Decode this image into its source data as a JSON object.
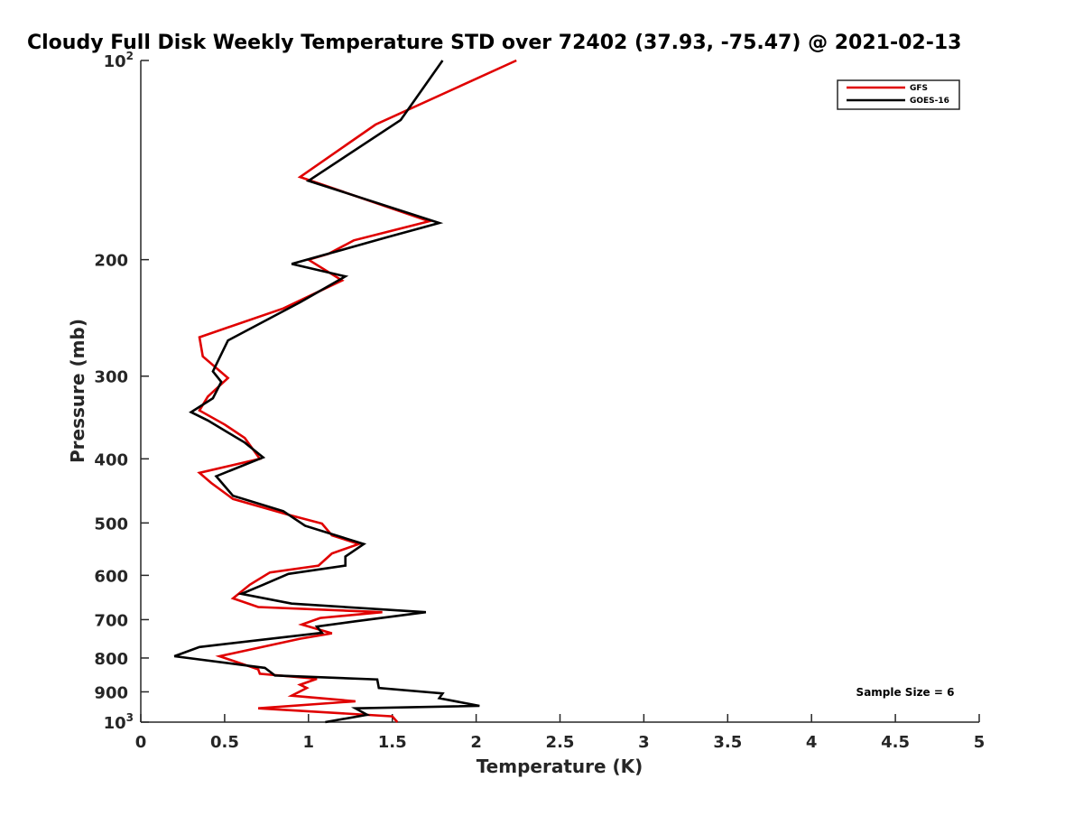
{
  "chart_data": {
    "type": "line",
    "title": "Cloudy Full Disk Weekly Temperature STD over 72402 (37.93, -75.47) @ 2021-02-13",
    "xlabel": "Temperature (K)",
    "ylabel": "Pressure (mb)",
    "xlim": [
      0,
      5
    ],
    "ylim": [
      100,
      1000
    ],
    "yscale": "log",
    "y_reversed": true,
    "x_ticks": [
      0,
      0.5,
      1,
      1.5,
      2,
      2.5,
      3,
      3.5,
      4,
      4.5,
      5
    ],
    "x_tick_labels": [
      "0",
      "0.5",
      "1",
      "1.5",
      "2",
      "2.5",
      "3",
      "3.5",
      "4",
      "4.5",
      "5"
    ],
    "y_ticks": [
      {
        "value": 100,
        "base": "10",
        "exp": "2"
      },
      {
        "value": 200,
        "label": "200"
      },
      {
        "value": 300,
        "label": "300"
      },
      {
        "value": 400,
        "label": "400"
      },
      {
        "value": 500,
        "label": "500"
      },
      {
        "value": 600,
        "label": "600"
      },
      {
        "value": 700,
        "label": "700"
      },
      {
        "value": 800,
        "label": "800"
      },
      {
        "value": 900,
        "label": "900"
      },
      {
        "value": 1000,
        "base": "10",
        "exp": "3"
      }
    ],
    "grid": false,
    "legend_position": "top-right",
    "annotation": "Sample Size = 6",
    "series": [
      {
        "name": "GFS",
        "color": "#e00000",
        "points": [
          [
            2.24,
            100
          ],
          [
            1.4,
            125
          ],
          [
            0.95,
            150
          ],
          [
            1.72,
            175
          ],
          [
            1.27,
            187
          ],
          [
            1.12,
            196
          ],
          [
            1.0,
            200
          ],
          [
            1.2,
            215
          ],
          [
            0.85,
            237
          ],
          [
            0.35,
            262
          ],
          [
            0.37,
            280
          ],
          [
            0.52,
            302
          ],
          [
            0.4,
            322
          ],
          [
            0.35,
            338
          ],
          [
            0.5,
            355
          ],
          [
            0.62,
            372
          ],
          [
            0.71,
            400
          ],
          [
            0.35,
            420
          ],
          [
            0.42,
            435
          ],
          [
            0.55,
            460
          ],
          [
            0.88,
            486
          ],
          [
            1.08,
            501
          ],
          [
            1.14,
            522
          ],
          [
            1.3,
            538
          ],
          [
            1.14,
            556
          ],
          [
            1.06,
            580
          ],
          [
            0.77,
            594
          ],
          [
            0.65,
            620
          ],
          [
            0.55,
            650
          ],
          [
            0.7,
            670
          ],
          [
            1.44,
            682
          ],
          [
            1.07,
            696
          ],
          [
            0.96,
            712
          ],
          [
            1.14,
            734
          ],
          [
            0.95,
            748
          ],
          [
            0.47,
            795
          ],
          [
            0.7,
            832
          ],
          [
            0.71,
            845
          ],
          [
            1.05,
            860
          ],
          [
            0.95,
            878
          ],
          [
            0.99,
            888
          ],
          [
            0.9,
            912
          ],
          [
            1.28,
            930
          ],
          [
            0.7,
            953
          ],
          [
            1.5,
            980
          ],
          [
            1.53,
            1000
          ]
        ]
      },
      {
        "name": "GOES-16",
        "color": "#000000",
        "points": [
          [
            1.8,
            100
          ],
          [
            1.55,
            123
          ],
          [
            1.0,
            152
          ],
          [
            1.78,
            176
          ],
          [
            1.47,
            185
          ],
          [
            0.9,
            203
          ],
          [
            1.22,
            212
          ],
          [
            0.95,
            232
          ],
          [
            0.52,
            265
          ],
          [
            0.43,
            295
          ],
          [
            0.48,
            306
          ],
          [
            0.43,
            324
          ],
          [
            0.3,
            340
          ],
          [
            0.4,
            350
          ],
          [
            0.62,
            378
          ],
          [
            0.73,
            398
          ],
          [
            0.45,
            425
          ],
          [
            0.55,
            455
          ],
          [
            0.85,
            480
          ],
          [
            0.98,
            505
          ],
          [
            1.33,
            538
          ],
          [
            1.22,
            562
          ],
          [
            1.22,
            580
          ],
          [
            0.88,
            597
          ],
          [
            0.73,
            620
          ],
          [
            0.6,
            640
          ],
          [
            0.9,
            662
          ],
          [
            1.7,
            682
          ],
          [
            1.28,
            704
          ],
          [
            1.05,
            717
          ],
          [
            1.08,
            733
          ],
          [
            0.35,
            770
          ],
          [
            0.2,
            795
          ],
          [
            0.74,
            828
          ],
          [
            0.8,
            850
          ],
          [
            1.41,
            862
          ],
          [
            1.42,
            888
          ],
          [
            1.8,
            905
          ],
          [
            1.78,
            920
          ],
          [
            2.02,
            945
          ],
          [
            1.28,
            953
          ],
          [
            1.35,
            975
          ],
          [
            1.1,
            1000
          ]
        ]
      }
    ]
  }
}
